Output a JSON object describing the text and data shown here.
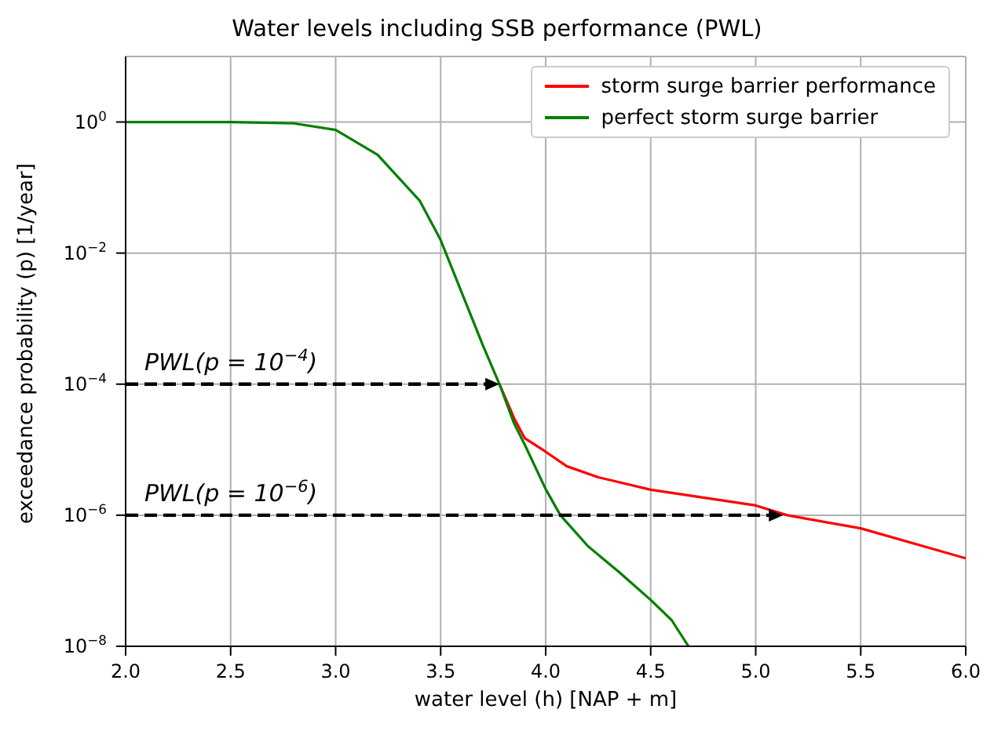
{
  "chart_data": {
    "type": "line",
    "title": "Water levels including SSB performance (PWL)",
    "xlabel": "water level (h) [NAP + m]",
    "ylabel": "exceedance probability (p) [1/year]",
    "series": [
      {
        "name": "storm surge barrier performance",
        "color": "#ff0000",
        "x": [
          3.78,
          3.85,
          3.9,
          4.0,
          4.1,
          4.25,
          4.5,
          4.75,
          5.0,
          5.15,
          5.5,
          6.0
        ],
        "values": [
          0.0001,
          3e-05,
          1.5e-05,
          9.3e-06,
          5.6e-06,
          3.8e-06,
          2.45e-06,
          1.86e-06,
          1.41e-06,
          1e-06,
          6.3e-07,
          2.2e-07
        ]
      },
      {
        "name": "perfect storm surge barrier",
        "color": "#008000",
        "x": [
          2.0,
          2.5,
          2.8,
          3.0,
          3.2,
          3.4,
          3.5,
          3.6,
          3.7,
          3.78,
          3.85,
          3.9,
          4.0,
          4.07,
          4.2,
          4.35,
          4.5,
          4.6,
          4.68
        ],
        "values": [
          1,
          1,
          0.955,
          0.759,
          0.316,
          0.0631,
          0.0158,
          0.00251,
          0.000398,
          0.0001,
          2.5e-05,
          1.2e-05,
          2.5e-06,
          1e-06,
          3.4e-07,
          1.35e-07,
          5.1e-08,
          2.5e-08,
          1e-08
        ]
      }
    ],
    "log": "y",
    "xlim": [
      2.0,
      6.0
    ],
    "xticks": [
      {
        "value": 2.0,
        "label": "2.0"
      },
      {
        "value": 2.5,
        "label": "2.5"
      },
      {
        "value": 3.0,
        "label": "3.0"
      },
      {
        "value": 3.5,
        "label": "3.5"
      },
      {
        "value": 4.0,
        "label": "4.0"
      },
      {
        "value": 4.5,
        "label": "4.5"
      },
      {
        "value": 5.0,
        "label": "5.0"
      },
      {
        "value": 5.5,
        "label": "5.5"
      },
      {
        "value": 6.0,
        "label": "6.0"
      }
    ],
    "ylim": [
      1e-08,
      10
    ],
    "yticks": [
      {
        "value": 1e-08,
        "label": "10$^{−8}$"
      },
      {
        "value": 1e-06,
        "label": "10$^{−6}$"
      },
      {
        "value": 0.0001,
        "label": "10$^{−4}$"
      },
      {
        "value": 0.01,
        "label": "10$^{−2}$"
      },
      {
        "value": 1,
        "label": "10$^{0}$"
      }
    ],
    "annotations": [
      {
        "text": "PWL(p = 10$^{−4}$)",
        "x": 3.78,
        "y": 0.0001
      },
      {
        "text": "PWL(p = 10$^{−6}$)",
        "x": 5.13,
        "y": 1e-06
      }
    ],
    "grid": true,
    "legend": "top right",
    "marker": "none",
    "line_style": "solid"
  }
}
